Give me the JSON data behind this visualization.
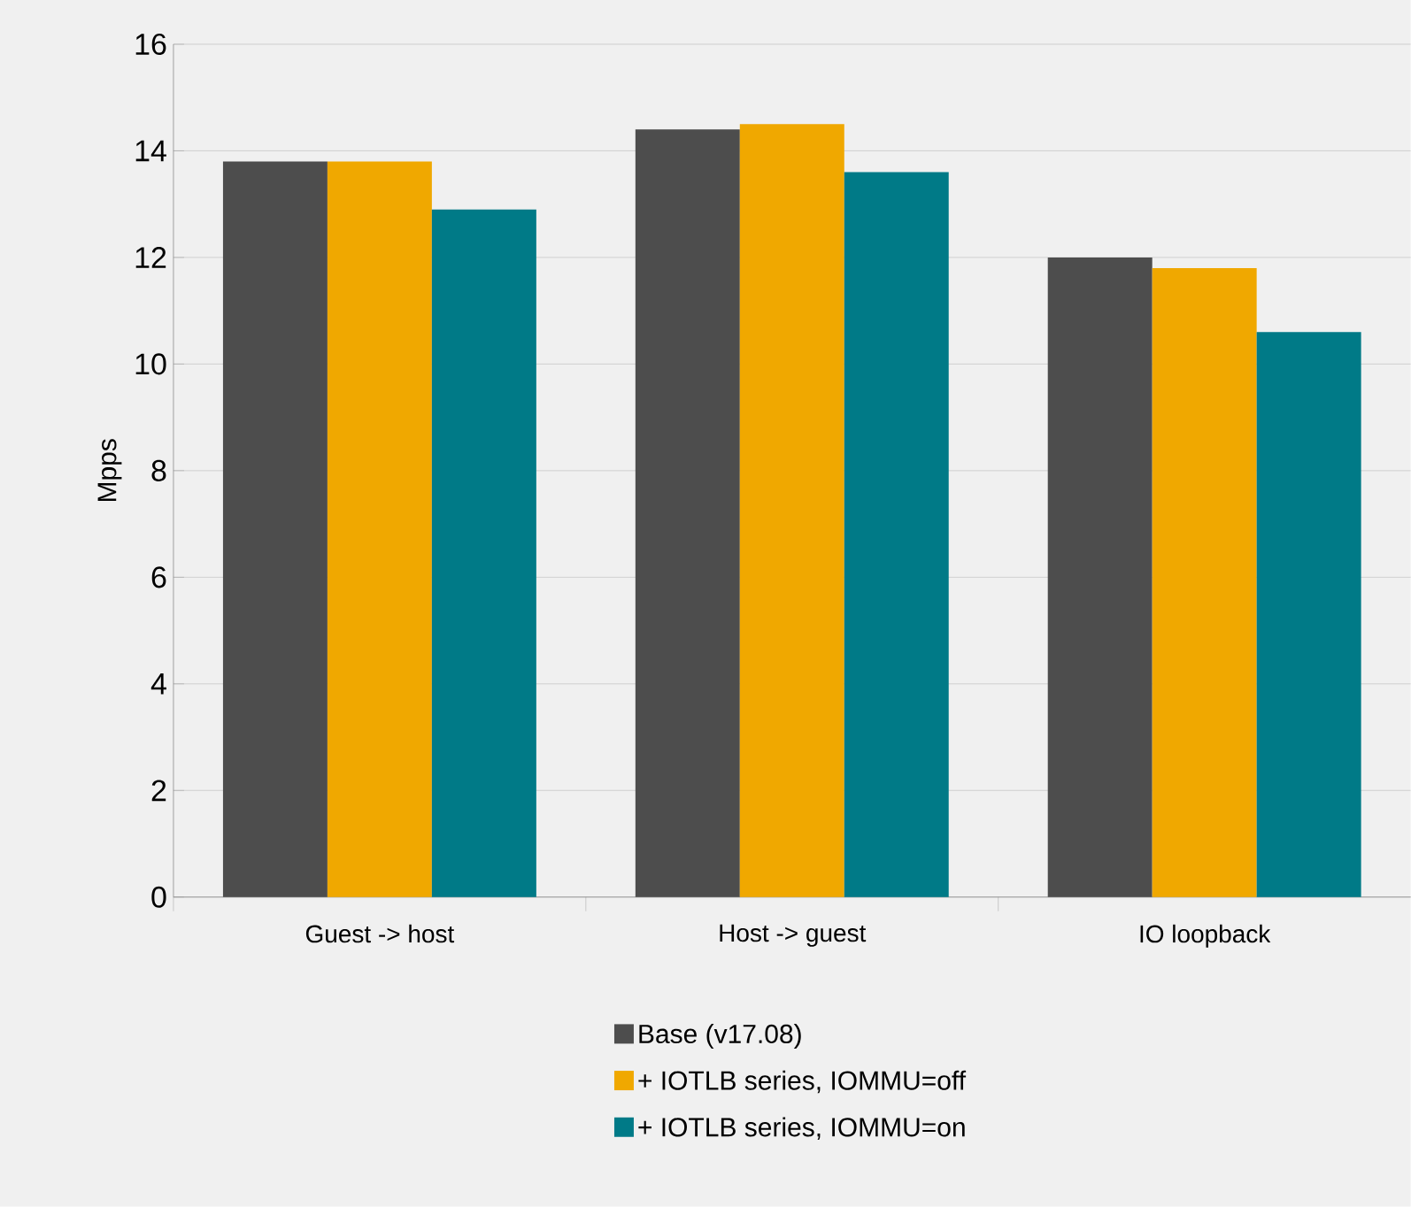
{
  "chart_data": {
    "type": "bar",
    "ylabel": "Mpps",
    "categories": [
      "Guest -> host",
      "Host -> guest",
      "IO loopback"
    ],
    "series": [
      {
        "name": "Base (v17.08)",
        "color": "#4d4d4d",
        "values": [
          13.8,
          14.4,
          12.0
        ]
      },
      {
        "name": "+ IOTLB series, IOMMU=off",
        "color": "#f0a800",
        "values": [
          13.8,
          14.5,
          11.8
        ]
      },
      {
        "name": "+ IOTLB series, IOMMU=on",
        "color": "#007a87",
        "values": [
          12.9,
          13.6,
          10.6
        ]
      }
    ],
    "ylim": [
      0,
      16
    ],
    "yticks": [
      0,
      2,
      4,
      6,
      8,
      10,
      12,
      14,
      16
    ],
    "grid": "y",
    "legend": "bottom"
  }
}
